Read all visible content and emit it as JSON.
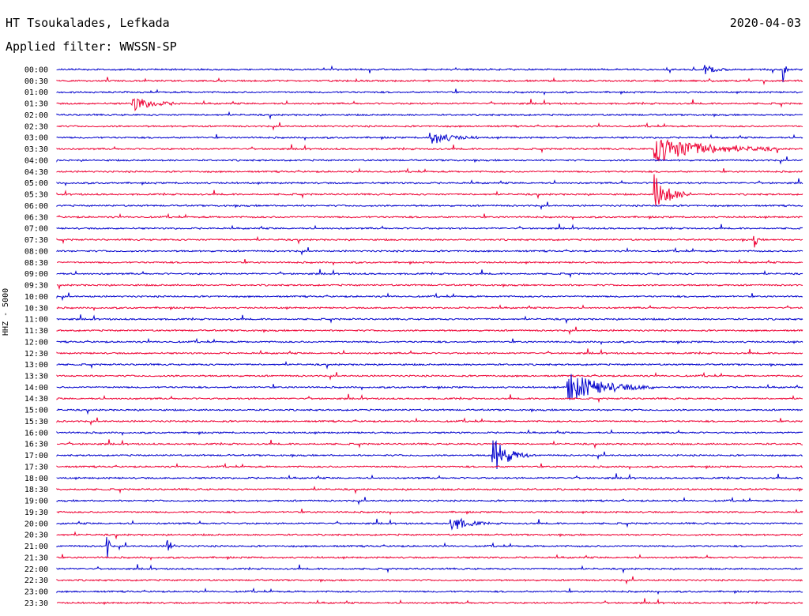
{
  "header": {
    "station": "HT Tsoukalades, Lefkada",
    "filter": "Applied filter: WWSSN-SP",
    "date": "2020-04-03",
    "channel": "HHZ - 5000"
  },
  "colors": {
    "even": "#0000cc",
    "odd": "#ee0033"
  },
  "chart_data": {
    "type": "line",
    "title": "HT Tsoukalades, Lefkada",
    "subtitle": "Applied filter: WWSSN-SP",
    "ylabel": "HHZ - 5000",
    "row_labels": [
      "00:00",
      "00:30",
      "01:00",
      "01:30",
      "02:00",
      "02:30",
      "03:00",
      "03:30",
      "04:00",
      "04:30",
      "05:00",
      "05:30",
      "06:00",
      "06:30",
      "07:00",
      "07:30",
      "08:00",
      "08:30",
      "09:00",
      "09:30",
      "10:00",
      "10:30",
      "11:00",
      "11:30",
      "12:00",
      "12:30",
      "13:00",
      "13:30",
      "14:00",
      "14:30",
      "15:00",
      "15:30",
      "16:00",
      "16:30",
      "17:00",
      "17:30",
      "18:00",
      "18:30",
      "19:00",
      "19:30",
      "20:00",
      "20:30",
      "21:00",
      "21:30",
      "22:00",
      "22:30",
      "23:00",
      "23:30"
    ],
    "row_minutes": 30,
    "events": [
      {
        "row": "00:00",
        "minute": 26,
        "amplitude": 8,
        "duration": 1
      },
      {
        "row": "01:30",
        "minute": 3,
        "amplitude": 10,
        "duration": 2
      },
      {
        "row": "03:00",
        "minute": 15,
        "amplitude": 9,
        "duration": 2
      },
      {
        "row": "03:30",
        "minute": 24,
        "amplitude": 18,
        "duration": 5
      },
      {
        "row": "05:30",
        "minute": 24,
        "amplitude": 26,
        "duration": 1.5
      },
      {
        "row": "07:30",
        "minute": 28,
        "amplitude": 16,
        "duration": 0.3
      },
      {
        "row": "00:00",
        "minute": 29.2,
        "amplitude": 22,
        "duration": 0.2
      },
      {
        "row": "14:00",
        "minute": 20.5,
        "amplitude": 20,
        "duration": 3.5
      },
      {
        "row": "17:00",
        "minute": 17.5,
        "amplitude": 26,
        "duration": 1.5
      },
      {
        "row": "20:00",
        "minute": 15.8,
        "amplitude": 12,
        "duration": 1.5
      },
      {
        "row": "21:00",
        "minute": 2,
        "amplitude": 26,
        "duration": 0.2
      },
      {
        "row": "21:00",
        "minute": 4.4,
        "amplitude": 14,
        "duration": 0.4
      }
    ]
  }
}
